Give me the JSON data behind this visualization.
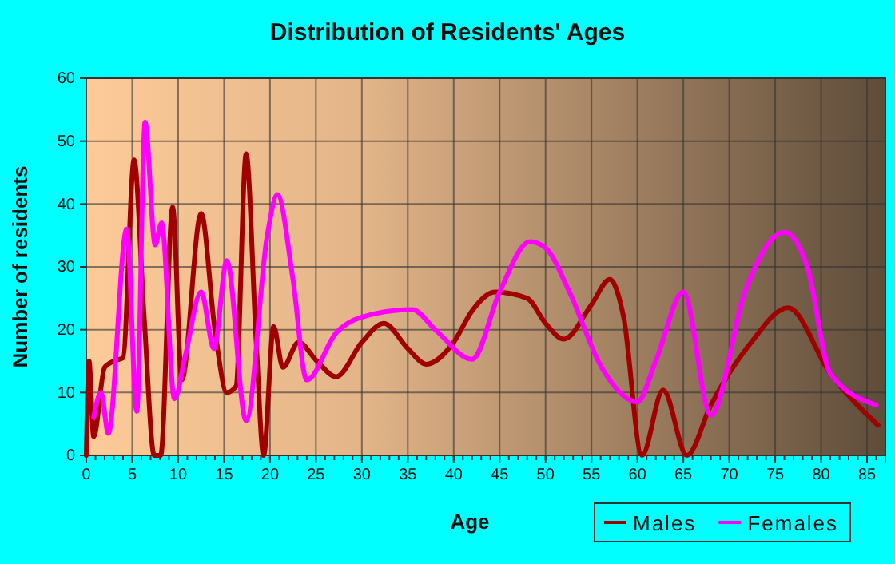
{
  "chart_data": {
    "type": "line",
    "title": "Distribution of Residents' Ages",
    "xlabel": "Age",
    "ylabel": "Number of residents",
    "xlim": [
      0,
      87
    ],
    "ylim": [
      0,
      60
    ],
    "xticks": [
      0,
      5,
      10,
      15,
      20,
      25,
      30,
      35,
      40,
      45,
      50,
      55,
      60,
      65,
      70,
      75,
      80,
      85
    ],
    "yticks": [
      0,
      10,
      20,
      30,
      40,
      50,
      60
    ],
    "grid": true,
    "legend": "bottom right",
    "marker": "none",
    "line_style": "solid",
    "series": [
      {
        "name": "Males",
        "color": "#a00000",
        "x": [
          0,
          0.3,
          0.8,
          2,
          3,
          4,
          5.2,
          6.3,
          7.4,
          8.1,
          9.4,
          10.4,
          12.5,
          14,
          15.3,
          16.3,
          17.4,
          18.5,
          19.3,
          20.4,
          21.4,
          23.1,
          25.1,
          27.2,
          30,
          32.4,
          35,
          37,
          40,
          42,
          44.5,
          48,
          50,
          52,
          55,
          57,
          58.5,
          60.5,
          62.8,
          65.4,
          68,
          72.3,
          76.4,
          81,
          86.2
        ],
        "values": [
          0,
          15,
          3,
          14,
          15,
          15.5,
          47,
          22,
          0,
          0,
          39.5,
          12,
          38.5,
          20,
          10,
          11,
          48,
          18,
          0,
          20.5,
          14,
          18,
          15,
          12.5,
          18,
          21,
          17,
          14.5,
          18,
          23,
          26,
          25,
          21,
          18.5,
          24,
          28,
          22,
          0,
          10.4,
          0,
          8,
          17.8,
          23.5,
          13,
          4.8
        ]
      },
      {
        "name": "Females",
        "color": "#ff00ff",
        "x": [
          0.8,
          1.6,
          2.4,
          4.4,
          5.5,
          6.4,
          7.5,
          8.2,
          9.6,
          10.8,
          12.5,
          13.9,
          15.3,
          17.4,
          19.7,
          20.8,
          22.5,
          24,
          27.2,
          30,
          35.5,
          38,
          42,
          45,
          48.3,
          50,
          52.6,
          56.1,
          60,
          62,
          65,
          68,
          71.7,
          76,
          78.5,
          81,
          86
        ],
        "values": [
          6,
          10,
          3.5,
          36,
          7,
          53,
          33.5,
          37,
          9,
          16,
          26,
          17,
          31,
          5.5,
          35,
          41.5,
          28,
          12,
          19.5,
          22,
          23.2,
          20,
          15.3,
          26,
          34,
          33,
          26,
          14,
          8.5,
          15,
          26,
          6.4,
          26,
          35.5,
          30,
          13,
          8
        ]
      }
    ]
  }
}
